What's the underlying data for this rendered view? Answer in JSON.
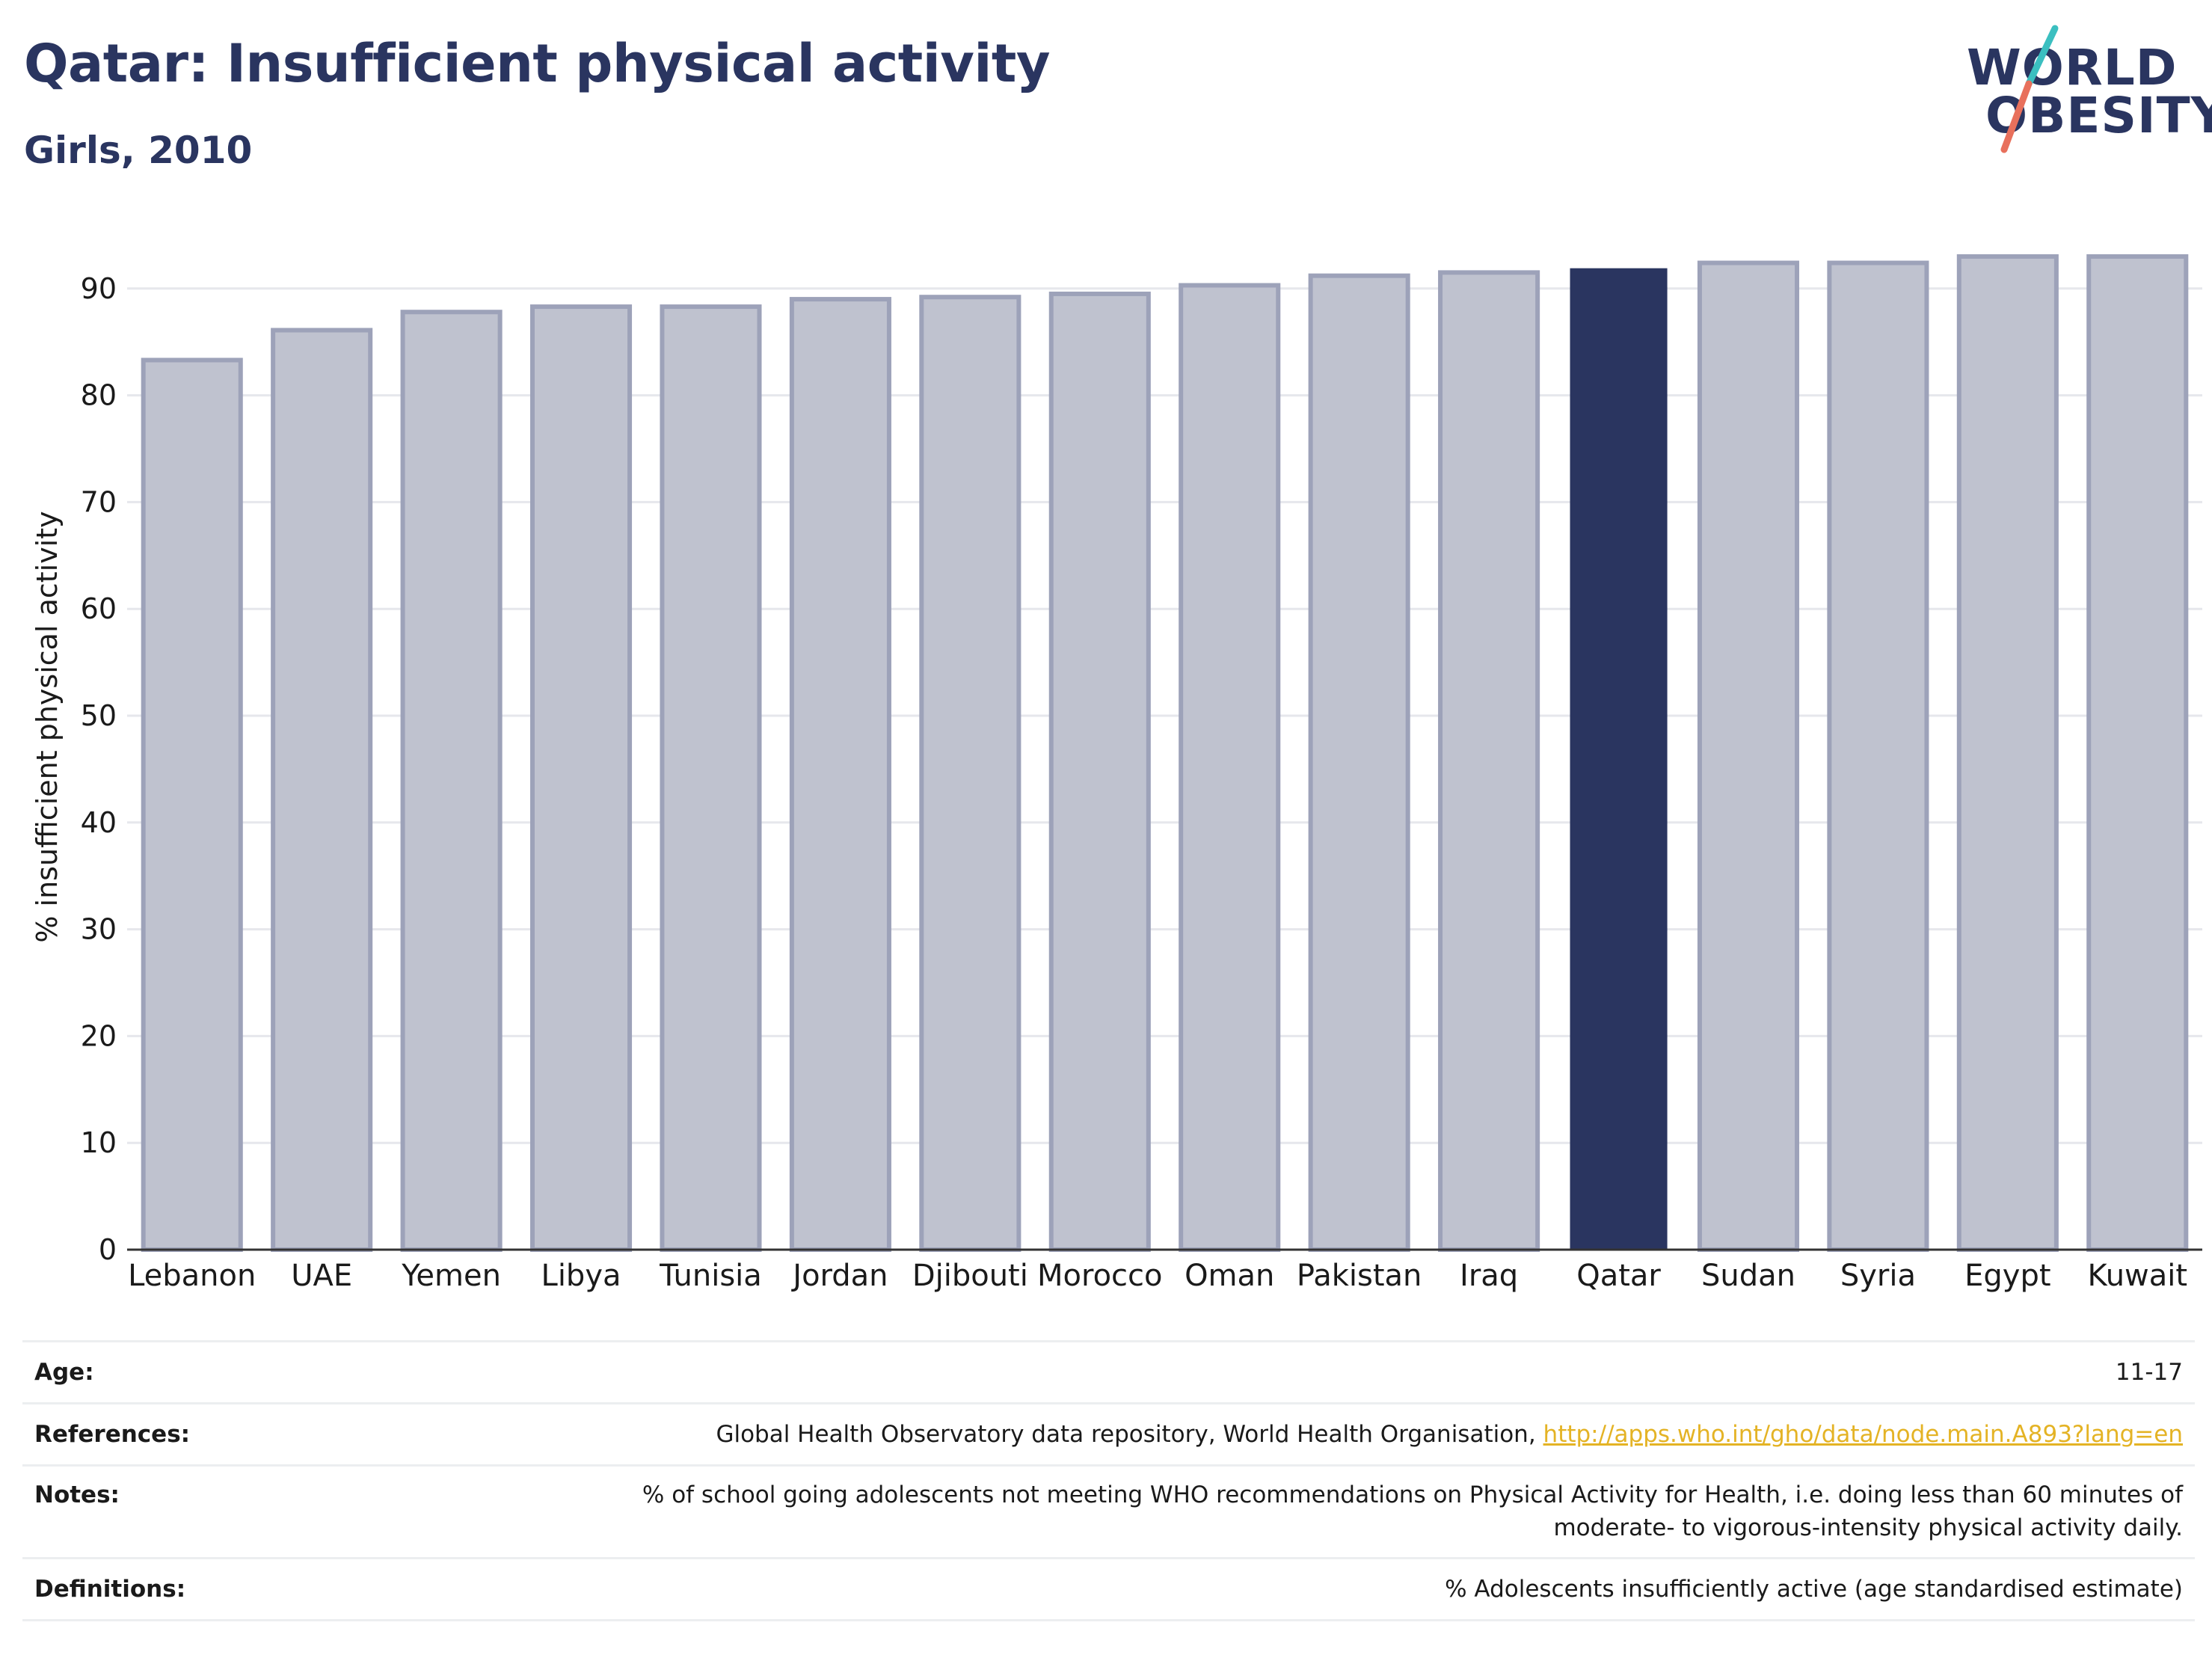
{
  "header": {
    "title": "Qatar: Insufficient physical activity",
    "subtitle": "Girls, 2010"
  },
  "logo": {
    "line1": "WORLD",
    "line2": "OBESITY",
    "text_color": "#2a3560",
    "slash_color_top": "#3bbfc0",
    "slash_color_bottom": "#e8705c"
  },
  "chart_data": {
    "type": "bar",
    "categories": [
      "Lebanon",
      "UAE",
      "Yemen",
      "Libya",
      "Tunisia",
      "Jordan",
      "Djibouti",
      "Morocco",
      "Oman",
      "Pakistan",
      "Iraq",
      "Qatar",
      "Sudan",
      "Syria",
      "Egypt",
      "Kuwait"
    ],
    "values": [
      83.3,
      86.1,
      87.8,
      88.3,
      88.3,
      89.0,
      89.2,
      89.5,
      90.3,
      91.2,
      91.5,
      91.9,
      92.4,
      92.4,
      93.0,
      93.0
    ],
    "highlight": "Qatar",
    "ylabel": "% insufficient physical activity",
    "ylim": [
      0,
      100
    ],
    "yticks": [
      0,
      10,
      20,
      30,
      40,
      50,
      60,
      70,
      80,
      90
    ],
    "grid": true,
    "colors": {
      "bar": "#bfc2cf",
      "bar_edge": "#9da2b9",
      "highlight": "#2a3560",
      "grid": "#e6e7ec",
      "axis": "#333333"
    }
  },
  "info": {
    "age_label": "Age:",
    "age_value": "11-17",
    "references_label": "References:",
    "references_text": "Global Health Observatory data repository, World Health Organisation, ",
    "references_link": "http://apps.who.int/gho/data/node.main.A893?lang=en",
    "notes_label": "Notes:",
    "notes_line1": "% of school going adolescents not meeting WHO recommendations on Physical Activity for Health, i.e. doing less than 60 minutes of",
    "notes_line2": "moderate- to vigorous-intensity physical activity daily.",
    "definitions_label": "Definitions:",
    "definitions_value": "% Adolescents insufficiently active (age standardised estimate)"
  }
}
